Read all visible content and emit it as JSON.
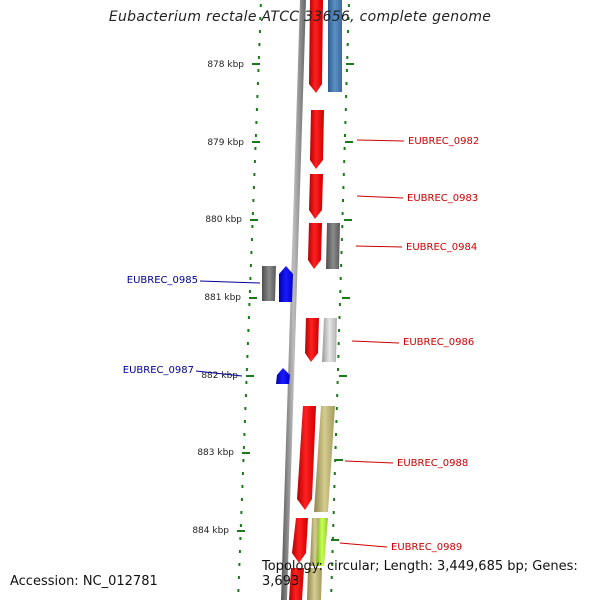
{
  "title": "Eubacterium rectale ATCC 33656, complete genome",
  "ruler": {
    "ticks": [
      "878 kbp",
      "879 kbp",
      "880 kbp",
      "881 kbp",
      "882 kbp",
      "883 kbp",
      "884 kbp"
    ]
  },
  "gene_labels": {
    "right": [
      "EUBREC_0982",
      "EUBREC_0983",
      "EUBREC_0984",
      "EUBREC_0986",
      "EUBREC_0988",
      "EUBREC_0989"
    ],
    "left": [
      "EUBREC_0985",
      "EUBREC_0987"
    ]
  },
  "colors": {
    "forward_gene": "#ff1a1a",
    "reverse_gene": "#1a1aff",
    "right_label": "#cc0000",
    "left_label": "#000099",
    "backbone": "#808080",
    "ruler_dot": "#1a7a1a"
  },
  "footer": {
    "accession": "Accession: NC_012781",
    "topology": "Topology: circular; Length: 3,449,685 bp; Genes: 3,693"
  }
}
